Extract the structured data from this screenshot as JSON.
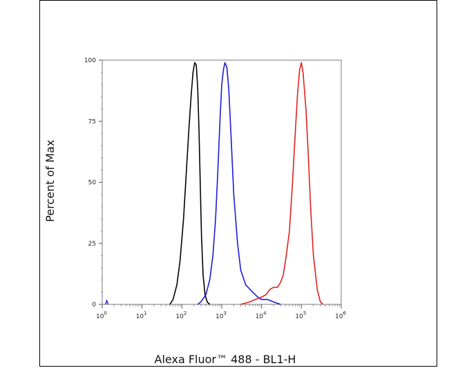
{
  "chart_data": {
    "type": "line",
    "title": "",
    "xlabel": "Alexa Fluor™ 488 - BL1-H",
    "ylabel": "Percent of Max",
    "xscale": "log",
    "xlim": [
      1,
      1000000
    ],
    "ylim": [
      0,
      100
    ],
    "x_ticks": [
      {
        "base": "10",
        "exp": "0"
      },
      {
        "base": "10",
        "exp": "1"
      },
      {
        "base": "10",
        "exp": "2"
      },
      {
        "base": "10",
        "exp": "3"
      },
      {
        "base": "10",
        "exp": "4"
      },
      {
        "base": "10",
        "exp": "5"
      },
      {
        "base": "10",
        "exp": "6"
      }
    ],
    "y_ticks": [
      "0",
      "25",
      "50",
      "75",
      "100"
    ],
    "grid": false,
    "legend": "none",
    "series": [
      {
        "color": "#000000",
        "points": [
          [
            50,
            0
          ],
          [
            60,
            2
          ],
          [
            75,
            8
          ],
          [
            90,
            18
          ],
          [
            110,
            35
          ],
          [
            130,
            55
          ],
          [
            150,
            72
          ],
          [
            170,
            85
          ],
          [
            190,
            95
          ],
          [
            210,
            99
          ],
          [
            230,
            98
          ],
          [
            250,
            88
          ],
          [
            270,
            70
          ],
          [
            290,
            48
          ],
          [
            310,
            28
          ],
          [
            340,
            12
          ],
          [
            380,
            4
          ],
          [
            430,
            1
          ],
          [
            500,
            0
          ]
        ]
      },
      {
        "color": "#1a1ad4",
        "points": [
          [
            250,
            0
          ],
          [
            300,
            1
          ],
          [
            400,
            4
          ],
          [
            500,
            10
          ],
          [
            600,
            20
          ],
          [
            700,
            35
          ],
          [
            800,
            55
          ],
          [
            900,
            75
          ],
          [
            1000,
            90
          ],
          [
            1100,
            96
          ],
          [
            1200,
            99
          ],
          [
            1350,
            97
          ],
          [
            1500,
            88
          ],
          [
            1700,
            70
          ],
          [
            2000,
            45
          ],
          [
            2500,
            25
          ],
          [
            3000,
            14
          ],
          [
            4000,
            8
          ],
          [
            6000,
            5
          ],
          [
            8000,
            3
          ],
          [
            10000,
            2
          ],
          [
            14000,
            2
          ],
          [
            20000,
            1
          ],
          [
            30000,
            0
          ]
        ]
      },
      {
        "color": "#e02020",
        "points": [
          [
            3000,
            0
          ],
          [
            5000,
            1
          ],
          [
            7000,
            2
          ],
          [
            10000,
            3
          ],
          [
            13000,
            4
          ],
          [
            16000,
            6
          ],
          [
            20000,
            7
          ],
          [
            25000,
            7
          ],
          [
            30000,
            9
          ],
          [
            35000,
            12
          ],
          [
            40000,
            18
          ],
          [
            50000,
            30
          ],
          [
            60000,
            50
          ],
          [
            70000,
            70
          ],
          [
            80000,
            86
          ],
          [
            90000,
            96
          ],
          [
            100000,
            99
          ],
          [
            110000,
            95
          ],
          [
            130000,
            80
          ],
          [
            150000,
            60
          ],
          [
            170000,
            40
          ],
          [
            200000,
            20
          ],
          [
            250000,
            6
          ],
          [
            300000,
            1
          ],
          [
            350000,
            0
          ]
        ]
      }
    ],
    "marker": {
      "color": "#1a1ad4",
      "x": 1.3,
      "y": 1
    }
  }
}
